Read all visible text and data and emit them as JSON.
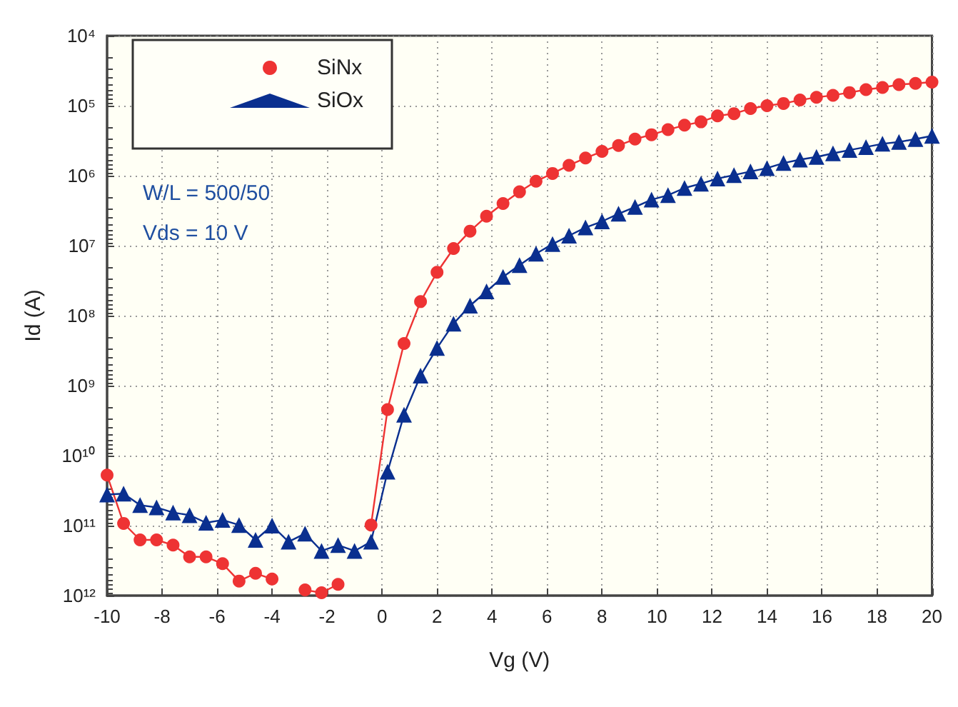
{
  "chart_data": {
    "type": "line",
    "xlabel": "Vg (V)",
    "ylabel": "Id (A)",
    "x": [
      -10,
      -9.4,
      -8.8,
      -8.2,
      -7.6,
      -7,
      -6.4,
      -5.8,
      -5.2,
      -4.6,
      -4,
      -3.4,
      -2.8,
      -2.2,
      -1.6,
      -1,
      -0.4,
      0.2,
      0.8,
      1.4,
      2,
      2.6,
      3.2,
      3.8,
      4.4,
      5,
      5.6,
      6.2,
      6.8,
      7.4,
      8,
      8.6,
      9.2,
      9.8,
      10.4,
      11,
      11.6,
      12.2,
      12.8,
      13.4,
      14,
      14.6,
      15.2,
      15.8,
      16.4,
      17,
      17.6,
      18.2,
      18.8,
      19.4,
      20
    ],
    "series": [
      {
        "name": "SiNx",
        "color": "#ee3333",
        "marker": "circle",
        "values": [
          19000000000.0,
          93000000000.0,
          160000000000.0,
          160000000000.0,
          190000000000.0,
          280000000000.0,
          280000000000.0,
          350000000000.0,
          620000000000.0,
          480000000000.0,
          580000000000.0,
          null,
          830000000000.0,
          910000000000.0,
          690000000000.0,
          null,
          98000000000.0,
          2200000000.0,
          250000000.0,
          63000000.0,
          24000000.0,
          11000000.0,
          6200000.0,
          3800000.0,
          2500000.0,
          1700000.0,
          1200000.0,
          930000.0,
          710000.0,
          560000.0,
          450000.0,
          370000.0,
          300000.0,
          260000.0,
          220000.0,
          190000.0,
          170000.0,
          140000.0,
          130000.0,
          110000.0,
          100000.0,
          93000.0,
          83000.0,
          76000.0,
          71000.0,
          65000.0,
          59000.0,
          55000.0,
          50000.0,
          48000.0,
          46000.0
        ]
      },
      {
        "name": "SiOx",
        "color": "#0a2f8f",
        "marker": "triangle",
        "values": [
          36000000000.0,
          35000000000.0,
          51000000000.0,
          55000000000.0,
          65000000000.0,
          71000000000.0,
          91000000000.0,
          83000000000.0,
          98000000000.0,
          160000000000.0,
          100000000000.0,
          170000000000.0,
          130000000000.0,
          230000000000.0,
          190000000000.0,
          230000000000.0,
          170000000000.0,
          17000000000.0,
          2600000000.0,
          720000000.0,
          290000000.0,
          130000000.0,
          72000000.0,
          45000000.0,
          28000000.0,
          19000000.0,
          13000000.0,
          9500000.0,
          7200000.0,
          5500000.0,
          4500000.0,
          3500000.0,
          2800000.0,
          2200000.0,
          1900000.0,
          1500000.0,
          1300000.0,
          1100000.0,
          980000.0,
          870000.0,
          780000.0,
          660000.0,
          590000.0,
          540000.0,
          480000.0,
          430000.0,
          390000.0,
          350000.0,
          330000.0,
          300000.0,
          270000.0
        ]
      }
    ],
    "xlim": [
      -10,
      20
    ],
    "xticks": [
      -10,
      -8,
      -6,
      -4,
      -2,
      0,
      2,
      4,
      6,
      8,
      10,
      12,
      14,
      16,
      18,
      20
    ],
    "log": "y",
    "ylim": [
      1000000000000.0,
      10000.0
    ],
    "yticks": [
      {
        "value": 10000.0,
        "label": "10⁴"
      },
      {
        "value": 100000.0,
        "label": "10⁵"
      },
      {
        "value": 1000000.0,
        "label": "10⁶"
      },
      {
        "value": 10000000.0,
        "label": "10⁷"
      },
      {
        "value": 100000000.0,
        "label": "10⁸"
      },
      {
        "value": 1000000000.0,
        "label": "10⁹"
      },
      {
        "value": 10000000000.0,
        "label": "10¹⁰"
      },
      {
        "value": 100000000000.0,
        "label": "10¹¹"
      },
      {
        "value": 1000000000000.0,
        "label": "10¹²"
      }
    ],
    "grid": true,
    "legend": "top left",
    "line_style": "solid",
    "annotations": [
      "W/L = 500/50",
      "Vds = 10 V"
    ]
  }
}
